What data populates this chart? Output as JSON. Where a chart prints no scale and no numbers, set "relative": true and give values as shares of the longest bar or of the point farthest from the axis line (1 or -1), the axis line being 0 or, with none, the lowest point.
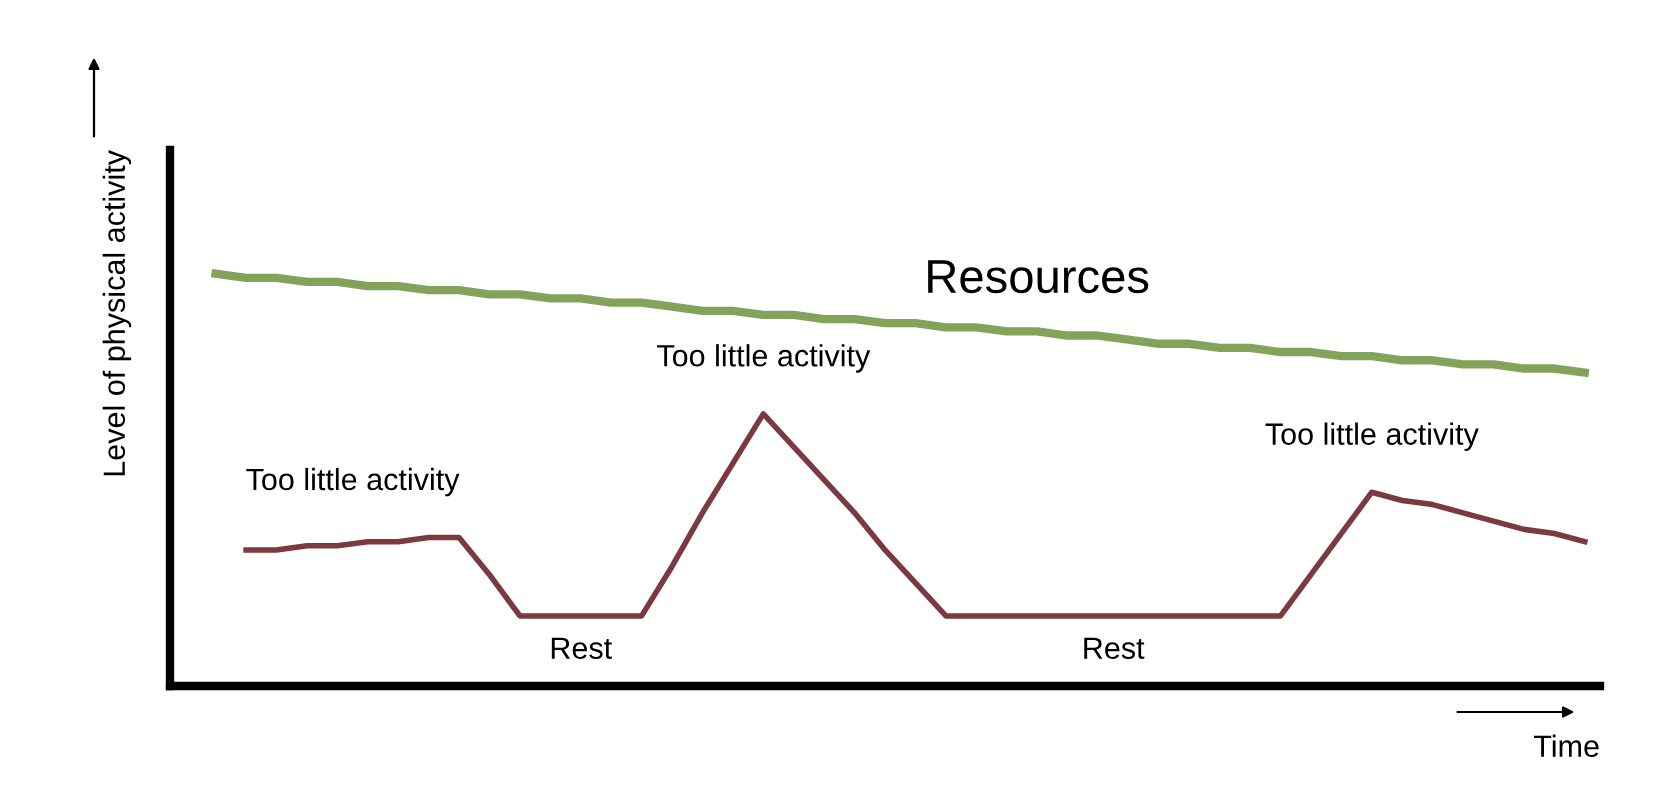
{
  "chart_data": {
    "type": "line",
    "relative": true,
    "xlabel": "Time",
    "ylabel": "Level of physical activity",
    "legend": false,
    "marker": "none",
    "line_style": "solid",
    "categories": [
      null,
      null,
      null,
      null,
      null,
      null,
      null,
      null,
      null,
      null,
      null,
      null,
      null,
      null,
      null,
      null,
      null,
      null,
      null,
      null,
      null,
      null,
      null,
      null,
      null,
      null,
      null,
      null,
      null,
      null,
      null,
      null,
      null,
      null,
      null,
      null,
      null,
      null,
      null,
      null,
      null,
      null,
      null,
      null,
      null,
      null,
      null
    ],
    "series": [
      {
        "name": "Resources",
        "color": "#84a35a",
        "values": [
          null,
          1.0,
          0.99,
          0.99,
          0.98,
          0.98,
          0.97,
          0.97,
          0.96,
          0.96,
          0.95,
          0.95,
          0.94,
          0.94,
          0.93,
          0.93,
          0.92,
          0.91,
          0.91,
          0.9,
          0.9,
          0.89,
          0.89,
          0.88,
          0.88,
          0.87,
          0.87,
          0.86,
          0.86,
          0.85,
          0.85,
          0.84,
          0.83,
          0.83,
          0.82,
          0.82,
          0.81,
          0.81,
          0.8,
          0.8,
          0.79,
          0.79,
          0.78,
          0.78,
          0.77,
          0.77,
          0.76
        ]
      },
      {
        "color": "#7b3a40",
        "values": [
          null,
          null,
          0.33,
          0.33,
          0.34,
          0.34,
          0.35,
          0.35,
          0.36,
          0.36,
          0.27,
          0.17,
          0.17,
          0.17,
          0.17,
          0.17,
          0.29,
          0.42,
          0.54,
          0.66,
          0.58,
          0.5,
          0.42,
          0.33,
          0.25,
          0.17,
          0.17,
          0.17,
          0.17,
          0.17,
          0.17,
          0.17,
          0.17,
          0.17,
          0.17,
          0.17,
          0.17,
          0.27,
          0.37,
          0.47,
          0.45,
          0.44,
          0.42,
          0.4,
          0.38,
          0.37,
          0.35
        ]
      }
    ],
    "annotations": [
      "Too little activity",
      "Rest",
      "Too little activity",
      "Rest",
      "Too little activity"
    ]
  }
}
